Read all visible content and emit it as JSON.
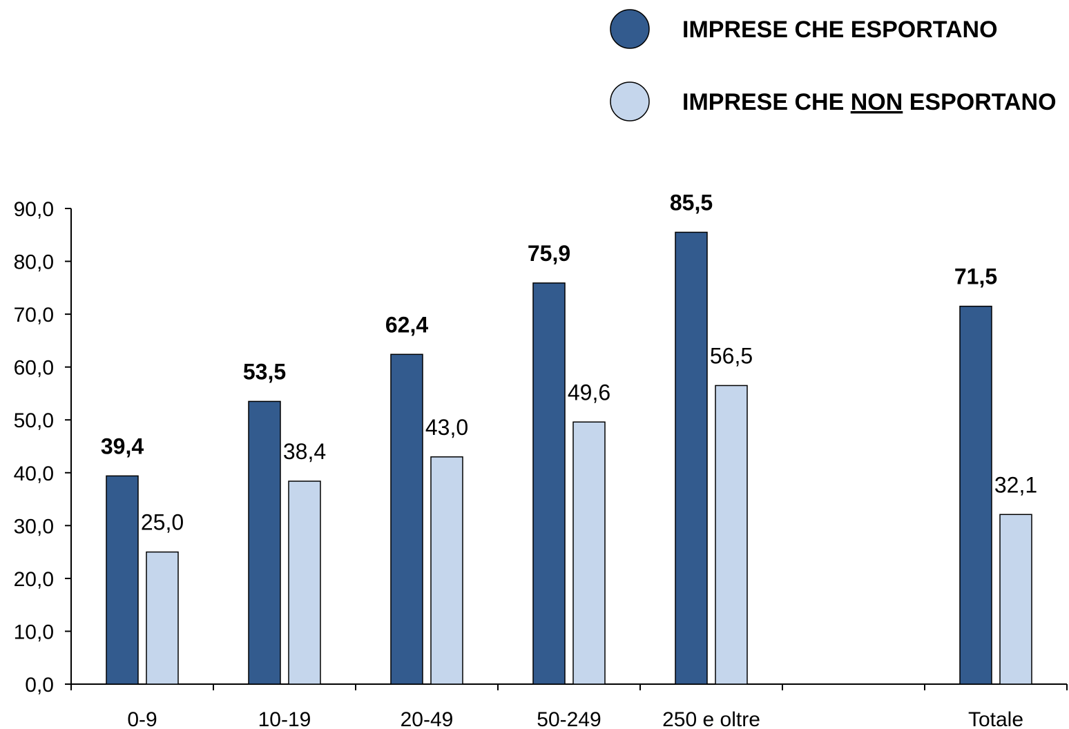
{
  "chart_data": {
    "type": "bar",
    "categories": [
      "0-9",
      "10-19",
      "20-49",
      "50-249",
      "250 e oltre",
      "",
      "Totale"
    ],
    "series": [
      {
        "name": "IMPRESE CHE ESPORTANO",
        "color": "#335B8E",
        "values": [
          39.4,
          53.5,
          62.4,
          75.9,
          85.5,
          null,
          71.5
        ],
        "labels": [
          "39,4",
          "53,5",
          "62,4",
          "75,9",
          "85,5",
          "",
          "71,5"
        ]
      },
      {
        "name": "IMPRESE CHE NON ESPORTANO",
        "color": "#C5D6EC",
        "values": [
          25.0,
          38.4,
          43.0,
          49.6,
          56.5,
          null,
          32.1
        ],
        "labels": [
          "25,0",
          "38,4",
          "43,0",
          "49,6",
          "56,5",
          "",
          "32,1"
        ]
      }
    ],
    "legend": {
      "placement": "top-right",
      "items": [
        {
          "pre": "IMPRESE CHE ESPORTANO",
          "underlined": "",
          "post": ""
        },
        {
          "pre": "IMPRESE CHE ",
          "underlined": "NON",
          "post": " ESPORTANO"
        }
      ]
    },
    "ylim": [
      0,
      90
    ],
    "yticks": [
      0,
      10,
      20,
      30,
      40,
      50,
      60,
      70,
      80,
      90
    ],
    "ytick_labels": [
      "0,0",
      "10,0",
      "20,0",
      "30,0",
      "40,0",
      "50,0",
      "60,0",
      "70,0",
      "80,0",
      "90,0"
    ],
    "grid": false,
    "title": "",
    "xlabel": "",
    "ylabel": ""
  }
}
